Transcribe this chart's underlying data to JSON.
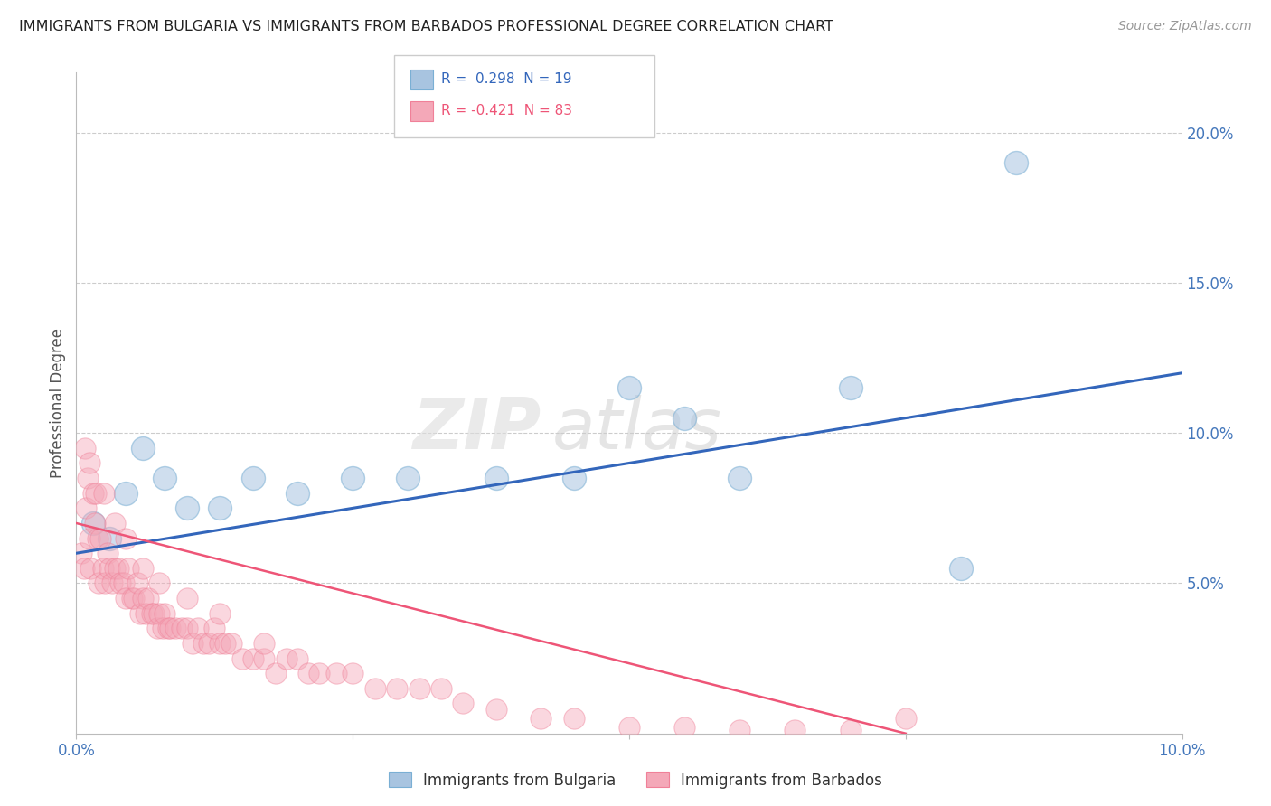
{
  "title": "IMMIGRANTS FROM BULGARIA VS IMMIGRANTS FROM BARBADOS PROFESSIONAL DEGREE CORRELATION CHART",
  "source": "Source: ZipAtlas.com",
  "ylabel": "Professional Degree",
  "legend_blue_label": "Immigrants from Bulgaria",
  "legend_pink_label": "Immigrants from Barbados",
  "legend_blue_text": "R =  0.298  N = 19",
  "legend_pink_text": "R = -0.421  N = 83",
  "blue_color": "#A8C4E0",
  "pink_color": "#F4A8B8",
  "blue_edge_color": "#7AAFD4",
  "pink_edge_color": "#F08098",
  "blue_line_color": "#3366BB",
  "pink_line_color": "#EE5577",
  "watermark_zip": "ZIP",
  "watermark_atlas": "atlas",
  "xlim": [
    0.0,
    10.0
  ],
  "ylim": [
    0.0,
    22.0
  ],
  "right_yticks": [
    5.0,
    10.0,
    15.0,
    20.0
  ],
  "blue_x": [
    0.15,
    0.3,
    0.45,
    0.6,
    0.8,
    1.0,
    1.3,
    1.6,
    2.0,
    2.5,
    3.0,
    3.8,
    4.5,
    5.0,
    5.5,
    6.0,
    7.0,
    8.0,
    8.5
  ],
  "blue_y": [
    7.0,
    6.5,
    8.0,
    9.5,
    8.5,
    7.5,
    7.5,
    8.5,
    8.0,
    8.5,
    8.5,
    8.5,
    8.5,
    11.5,
    10.5,
    8.5,
    11.5,
    5.5,
    19.0
  ],
  "pink_x": [
    0.05,
    0.07,
    0.09,
    0.1,
    0.12,
    0.13,
    0.15,
    0.17,
    0.19,
    0.2,
    0.22,
    0.24,
    0.26,
    0.28,
    0.3,
    0.32,
    0.35,
    0.38,
    0.4,
    0.43,
    0.45,
    0.47,
    0.5,
    0.52,
    0.55,
    0.58,
    0.6,
    0.63,
    0.65,
    0.68,
    0.7,
    0.73,
    0.75,
    0.78,
    0.8,
    0.83,
    0.85,
    0.9,
    0.95,
    1.0,
    1.05,
    1.1,
    1.15,
    1.2,
    1.25,
    1.3,
    1.35,
    1.4,
    1.5,
    1.6,
    1.7,
    1.8,
    1.9,
    2.0,
    2.1,
    2.2,
    2.35,
    2.5,
    2.7,
    2.9,
    3.1,
    3.3,
    3.5,
    3.8,
    4.2,
    4.5,
    5.0,
    5.5,
    6.0,
    6.5,
    7.0,
    7.5,
    0.08,
    0.12,
    0.18,
    0.25,
    0.35,
    0.45,
    0.6,
    0.75,
    1.0,
    1.3,
    1.7
  ],
  "pink_y": [
    6.0,
    5.5,
    7.5,
    8.5,
    6.5,
    5.5,
    8.0,
    7.0,
    6.5,
    5.0,
    6.5,
    5.5,
    5.0,
    6.0,
    5.5,
    5.0,
    5.5,
    5.5,
    5.0,
    5.0,
    4.5,
    5.5,
    4.5,
    4.5,
    5.0,
    4.0,
    4.5,
    4.0,
    4.5,
    4.0,
    4.0,
    3.5,
    4.0,
    3.5,
    4.0,
    3.5,
    3.5,
    3.5,
    3.5,
    3.5,
    3.0,
    3.5,
    3.0,
    3.0,
    3.5,
    3.0,
    3.0,
    3.0,
    2.5,
    2.5,
    2.5,
    2.0,
    2.5,
    2.5,
    2.0,
    2.0,
    2.0,
    2.0,
    1.5,
    1.5,
    1.5,
    1.5,
    1.0,
    0.8,
    0.5,
    0.5,
    0.2,
    0.2,
    0.1,
    0.1,
    0.1,
    0.5,
    9.5,
    9.0,
    8.0,
    8.0,
    7.0,
    6.5,
    5.5,
    5.0,
    4.5,
    4.0,
    3.0
  ]
}
